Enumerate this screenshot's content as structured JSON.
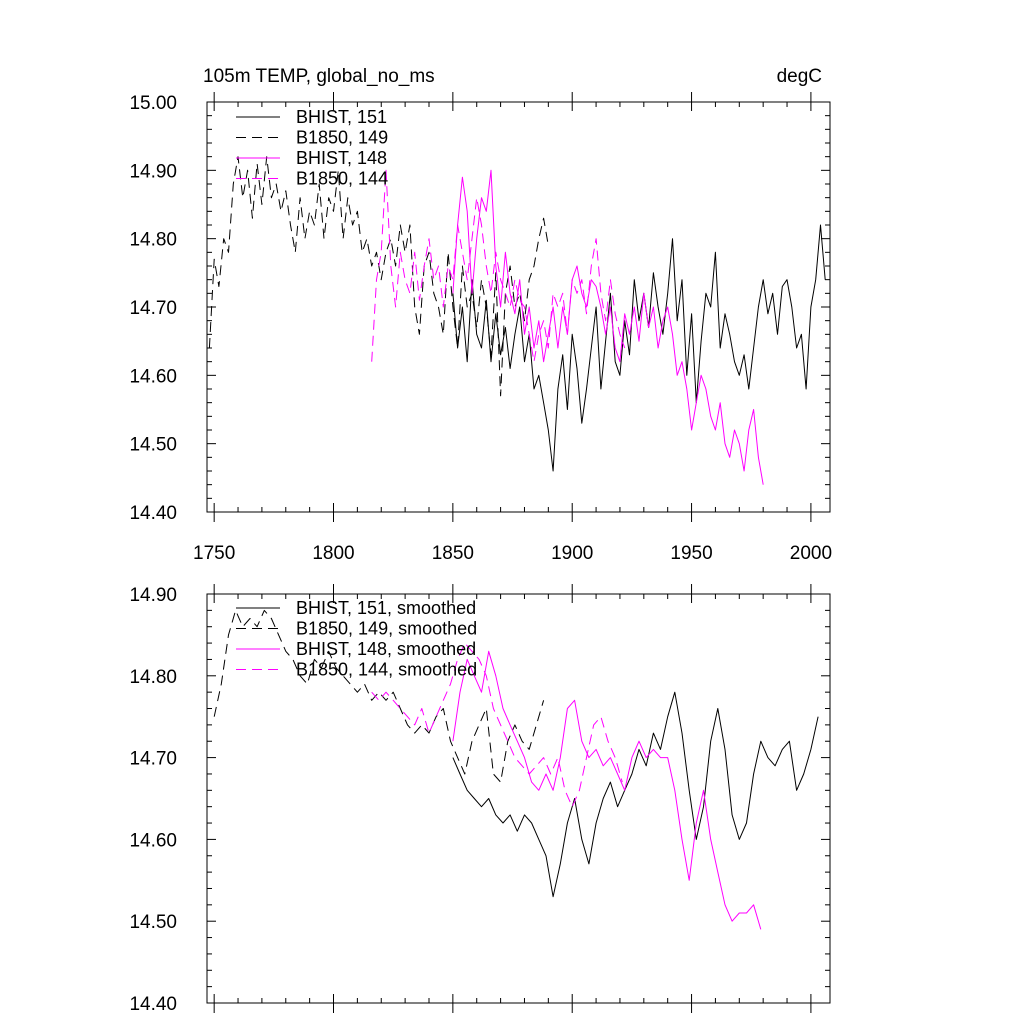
{
  "colors": {
    "bhist": "#000000",
    "b1850": "#000000",
    "magenta": "#ff00ff"
  },
  "chart_data": [
    {
      "type": "line",
      "title": "105m TEMP, global_no_ms",
      "units": "degC",
      "xlim": [
        1747,
        2008
      ],
      "ylim": [
        14.4,
        15.0
      ],
      "xticks": [
        1750,
        1800,
        1850,
        1900,
        1950,
        2000
      ],
      "xtick_labels": [
        "1750",
        "1800",
        "1850",
        "1900",
        "1950",
        "2000"
      ],
      "yticks": [
        14.4,
        14.5,
        14.6,
        14.7,
        14.8,
        14.9,
        15.0
      ],
      "ytick_labels": [
        "14.40",
        "14.50",
        "14.60",
        "14.70",
        "14.80",
        "14.90",
        "15.00"
      ],
      "legend_position": "top-left",
      "series": [
        {
          "name": "BHIST, 151",
          "color": "black",
          "dash": "solid",
          "x": [
            1850,
            1852,
            1854,
            1856,
            1858,
            1860,
            1862,
            1864,
            1866,
            1868,
            1870,
            1872,
            1874,
            1876,
            1878,
            1880,
            1882,
            1884,
            1886,
            1888,
            1890,
            1892,
            1894,
            1896,
            1898,
            1900,
            1902,
            1904,
            1906,
            1908,
            1910,
            1912,
            1914,
            1916,
            1918,
            1920,
            1922,
            1924,
            1926,
            1928,
            1930,
            1932,
            1934,
            1936,
            1938,
            1940,
            1942,
            1944,
            1946,
            1948,
            1950,
            1952,
            1954,
            1956,
            1958,
            1960,
            1962,
            1964,
            1966,
            1968,
            1970,
            1972,
            1974,
            1976,
            1978,
            1980,
            1982,
            1984,
            1986,
            1988,
            1990,
            1992,
            1994,
            1996,
            1998,
            2000,
            2002,
            2004,
            2006
          ],
          "y": [
            14.72,
            14.64,
            14.7,
            14.62,
            14.74,
            14.66,
            14.64,
            14.71,
            14.62,
            14.69,
            14.63,
            14.67,
            14.61,
            14.66,
            14.7,
            14.62,
            14.66,
            14.58,
            14.6,
            14.56,
            14.52,
            14.46,
            14.58,
            14.63,
            14.55,
            14.66,
            14.61,
            14.53,
            14.58,
            14.64,
            14.7,
            14.58,
            14.65,
            14.72,
            14.62,
            14.6,
            14.68,
            14.63,
            14.74,
            14.68,
            14.72,
            14.67,
            14.75,
            14.7,
            14.66,
            14.72,
            14.8,
            14.68,
            14.74,
            14.6,
            14.69,
            14.56,
            14.65,
            14.72,
            14.7,
            14.78,
            14.64,
            14.69,
            14.66,
            14.62,
            14.6,
            14.63,
            14.58,
            14.64,
            14.7,
            14.74,
            14.69,
            14.72,
            14.66,
            14.73,
            14.74,
            14.7,
            14.64,
            14.66,
            14.58,
            14.7,
            14.74,
            14.82,
            14.74
          ]
        },
        {
          "name": "B1850, 149",
          "color": "black",
          "dash": "dashed",
          "x": [
            1748,
            1750,
            1752,
            1754,
            1756,
            1758,
            1760,
            1762,
            1764,
            1766,
            1768,
            1770,
            1772,
            1774,
            1776,
            1778,
            1780,
            1782,
            1784,
            1786,
            1788,
            1790,
            1792,
            1794,
            1796,
            1798,
            1800,
            1802,
            1804,
            1806,
            1808,
            1810,
            1812,
            1814,
            1816,
            1818,
            1820,
            1822,
            1824,
            1826,
            1828,
            1830,
            1832,
            1834,
            1836,
            1838,
            1840,
            1842,
            1844,
            1846,
            1848,
            1850,
            1852,
            1854,
            1856,
            1858,
            1860,
            1862,
            1864,
            1866,
            1868,
            1870,
            1872,
            1874,
            1876,
            1878,
            1880,
            1882,
            1884,
            1886,
            1888,
            1890
          ],
          "y": [
            14.64,
            14.77,
            14.73,
            14.8,
            14.78,
            14.88,
            14.92,
            14.86,
            14.9,
            14.83,
            14.91,
            14.85,
            14.92,
            14.86,
            14.88,
            14.84,
            14.87,
            14.82,
            14.78,
            14.86,
            14.8,
            14.84,
            14.82,
            14.88,
            14.8,
            14.86,
            14.84,
            14.9,
            14.8,
            14.86,
            14.82,
            14.84,
            14.78,
            14.8,
            14.76,
            14.78,
            14.74,
            14.78,
            14.8,
            14.76,
            14.82,
            14.78,
            14.82,
            14.7,
            14.66,
            14.76,
            14.78,
            14.72,
            14.7,
            14.66,
            14.78,
            14.7,
            14.64,
            14.76,
            14.7,
            14.72,
            14.67,
            14.74,
            14.7,
            14.63,
            14.75,
            14.57,
            14.72,
            14.76,
            14.7,
            14.72,
            14.68,
            14.74,
            14.76,
            14.8,
            14.83,
            14.79
          ]
        },
        {
          "name": "BHIST, 148",
          "color": "magenta",
          "dash": "solid",
          "x": [
            1850,
            1852,
            1854,
            1856,
            1858,
            1860,
            1862,
            1864,
            1866,
            1868,
            1870,
            1872,
            1874,
            1876,
            1878,
            1880,
            1882,
            1884,
            1886,
            1888,
            1890,
            1892,
            1894,
            1896,
            1898,
            1900,
            1902,
            1904,
            1906,
            1908,
            1910,
            1912,
            1914,
            1916,
            1918,
            1920,
            1922,
            1924,
            1926,
            1928,
            1930,
            1932,
            1934,
            1936,
            1938,
            1940,
            1942,
            1944,
            1946,
            1948,
            1950,
            1952,
            1954,
            1956,
            1958,
            1960,
            1962,
            1964,
            1966,
            1968,
            1970,
            1972,
            1974,
            1976,
            1978,
            1980
          ],
          "y": [
            14.72,
            14.82,
            14.89,
            14.84,
            14.72,
            14.8,
            14.86,
            14.84,
            14.9,
            14.76,
            14.7,
            14.78,
            14.72,
            14.69,
            14.74,
            14.66,
            14.7,
            14.64,
            14.68,
            14.62,
            14.66,
            14.7,
            14.64,
            14.7,
            14.66,
            14.74,
            14.76,
            14.72,
            14.7,
            14.74,
            14.73,
            14.7,
            14.66,
            14.7,
            14.64,
            14.62,
            14.69,
            14.66,
            14.7,
            14.65,
            14.72,
            14.67,
            14.7,
            14.64,
            14.68,
            14.7,
            14.66,
            14.6,
            14.62,
            14.58,
            14.52,
            14.56,
            14.6,
            14.58,
            14.54,
            14.52,
            14.56,
            14.5,
            14.48,
            14.52,
            14.5,
            14.46,
            14.52,
            14.55,
            14.48,
            14.44
          ]
        },
        {
          "name": "B1850, 144",
          "color": "magenta",
          "dash": "dashed",
          "x": [
            1816,
            1818,
            1820,
            1822,
            1824,
            1826,
            1828,
            1830,
            1832,
            1834,
            1836,
            1838,
            1840,
            1842,
            1844,
            1846,
            1848,
            1850,
            1852,
            1854,
            1856,
            1858,
            1860,
            1862,
            1864,
            1866,
            1868,
            1870,
            1872,
            1874,
            1876,
            1878,
            1880,
            1882,
            1884,
            1886,
            1888,
            1890,
            1892,
            1894,
            1896,
            1898,
            1900,
            1902,
            1904,
            1906,
            1908,
            1910,
            1912,
            1914,
            1916,
            1918,
            1920,
            1922
          ],
          "y": [
            14.62,
            14.74,
            14.78,
            14.9,
            14.76,
            14.7,
            14.78,
            14.74,
            14.72,
            14.78,
            14.71,
            14.76,
            14.8,
            14.74,
            14.76,
            14.7,
            14.76,
            14.74,
            14.82,
            14.78,
            14.74,
            14.8,
            14.86,
            14.82,
            14.76,
            14.72,
            14.78,
            14.74,
            14.72,
            14.7,
            14.74,
            14.71,
            14.7,
            14.66,
            14.62,
            14.66,
            14.68,
            14.64,
            14.72,
            14.7,
            14.72,
            14.66,
            14.74,
            14.72,
            14.74,
            14.69,
            14.76,
            14.8,
            14.72,
            14.68,
            14.74,
            14.69,
            14.66,
            14.64
          ]
        }
      ]
    },
    {
      "type": "line",
      "title": "",
      "units": "",
      "xlim": [
        1747,
        2008
      ],
      "ylim": [
        14.4,
        14.9
      ],
      "xticks": [
        1750,
        1800,
        1850,
        1900,
        1950,
        2000
      ],
      "yticks": [
        14.4,
        14.5,
        14.6,
        14.7,
        14.8,
        14.9
      ],
      "ytick_labels": [
        "14.40",
        "14.50",
        "14.60",
        "14.70",
        "14.80",
        "14.90"
      ],
      "legend_position": "top-left",
      "series": [
        {
          "name": "BHIST, 151, smoothed",
          "color": "black",
          "dash": "solid",
          "x": [
            1850,
            1853,
            1856,
            1859,
            1862,
            1865,
            1868,
            1871,
            1874,
            1877,
            1880,
            1883,
            1886,
            1889,
            1892,
            1895,
            1898,
            1901,
            1904,
            1907,
            1910,
            1913,
            1916,
            1919,
            1922,
            1925,
            1928,
            1931,
            1934,
            1937,
            1940,
            1943,
            1946,
            1949,
            1952,
            1955,
            1958,
            1961,
            1964,
            1967,
            1970,
            1973,
            1976,
            1979,
            1982,
            1985,
            1988,
            1991,
            1994,
            1997,
            2000,
            2003
          ],
          "y": [
            14.7,
            14.68,
            14.66,
            14.65,
            14.64,
            14.65,
            14.63,
            14.62,
            14.63,
            14.61,
            14.63,
            14.62,
            14.6,
            14.58,
            14.53,
            14.57,
            14.62,
            14.65,
            14.6,
            14.57,
            14.62,
            14.65,
            14.67,
            14.64,
            14.66,
            14.68,
            14.71,
            14.69,
            14.73,
            14.71,
            14.75,
            14.78,
            14.73,
            14.66,
            14.6,
            14.64,
            14.72,
            14.76,
            14.71,
            14.63,
            14.6,
            14.62,
            14.68,
            14.72,
            14.7,
            14.69,
            14.71,
            14.72,
            14.66,
            14.68,
            14.71,
            14.75
          ]
        },
        {
          "name": "B1850, 149, smoothed",
          "color": "black",
          "dash": "dashed",
          "x": [
            1750,
            1753,
            1756,
            1759,
            1762,
            1765,
            1768,
            1771,
            1774,
            1777,
            1780,
            1783,
            1786,
            1789,
            1792,
            1795,
            1798,
            1801,
            1804,
            1807,
            1810,
            1813,
            1816,
            1819,
            1822,
            1825,
            1828,
            1831,
            1834,
            1837,
            1840,
            1843,
            1846,
            1849,
            1852,
            1855,
            1858,
            1861,
            1864,
            1867,
            1870,
            1873,
            1876,
            1879,
            1882,
            1885,
            1888
          ],
          "y": [
            14.75,
            14.79,
            14.85,
            14.88,
            14.86,
            14.87,
            14.86,
            14.88,
            14.87,
            14.85,
            14.83,
            14.82,
            14.8,
            14.79,
            14.82,
            14.81,
            14.83,
            14.81,
            14.8,
            14.79,
            14.78,
            14.79,
            14.77,
            14.78,
            14.77,
            14.78,
            14.76,
            14.74,
            14.73,
            14.74,
            14.73,
            14.75,
            14.76,
            14.72,
            14.7,
            14.68,
            14.72,
            14.74,
            14.76,
            14.68,
            14.67,
            14.72,
            14.74,
            14.72,
            14.71,
            14.74,
            14.77
          ]
        },
        {
          "name": "BHIST, 148, smoothed",
          "color": "magenta",
          "dash": "solid",
          "x": [
            1850,
            1853,
            1856,
            1859,
            1862,
            1865,
            1868,
            1871,
            1874,
            1877,
            1880,
            1883,
            1886,
            1889,
            1892,
            1895,
            1898,
            1901,
            1904,
            1907,
            1910,
            1913,
            1916,
            1919,
            1922,
            1925,
            1928,
            1931,
            1934,
            1937,
            1940,
            1943,
            1946,
            1949,
            1952,
            1955,
            1958,
            1961,
            1964,
            1967,
            1970,
            1973,
            1976,
            1979
          ],
          "y": [
            14.72,
            14.78,
            14.82,
            14.8,
            14.78,
            14.83,
            14.8,
            14.76,
            14.74,
            14.72,
            14.7,
            14.67,
            14.66,
            14.68,
            14.66,
            14.7,
            14.76,
            14.77,
            14.72,
            14.7,
            14.71,
            14.69,
            14.7,
            14.68,
            14.66,
            14.7,
            14.72,
            14.7,
            14.71,
            14.7,
            14.7,
            14.66,
            14.6,
            14.55,
            14.62,
            14.66,
            14.6,
            14.56,
            14.52,
            14.5,
            14.51,
            14.51,
            14.52,
            14.49
          ]
        },
        {
          "name": "B1850, 144, smoothed",
          "color": "magenta",
          "dash": "dashed",
          "x": [
            1816,
            1819,
            1822,
            1825,
            1828,
            1831,
            1834,
            1837,
            1840,
            1843,
            1846,
            1849,
            1852,
            1855,
            1858,
            1861,
            1864,
            1867,
            1870,
            1873,
            1876,
            1879,
            1882,
            1885,
            1888,
            1891,
            1894,
            1897,
            1900,
            1903,
            1906,
            1909,
            1912,
            1915,
            1918,
            1921
          ],
          "y": [
            14.78,
            14.77,
            14.78,
            14.77,
            14.76,
            14.75,
            14.74,
            14.76,
            14.73,
            14.75,
            14.77,
            14.79,
            14.82,
            14.84,
            14.83,
            14.82,
            14.8,
            14.76,
            14.74,
            14.72,
            14.7,
            14.69,
            14.68,
            14.69,
            14.7,
            14.68,
            14.7,
            14.66,
            14.64,
            14.66,
            14.7,
            14.74,
            14.75,
            14.72,
            14.7,
            14.67
          ]
        }
      ]
    }
  ]
}
